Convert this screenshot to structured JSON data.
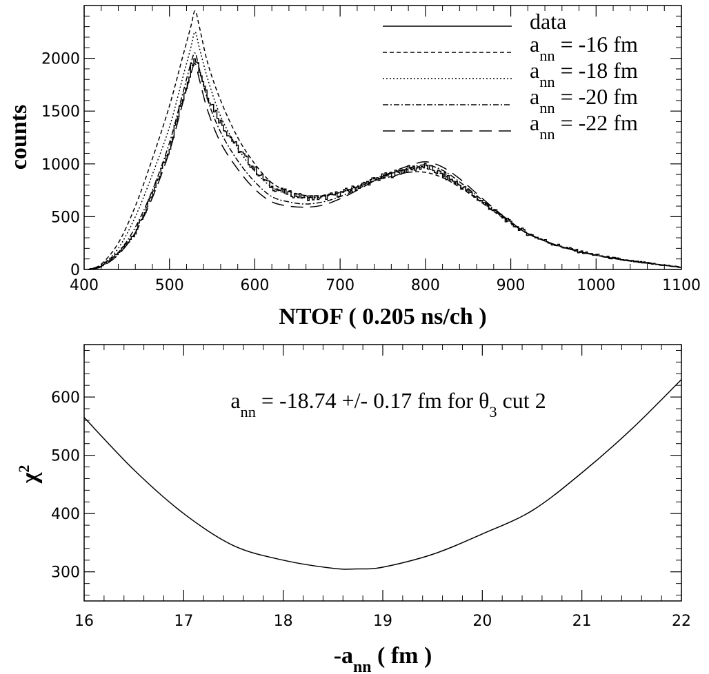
{
  "chart_data": [
    {
      "type": "line",
      "xlabel": "NTOF ( 0.205 ns/ch )",
      "ylabel": "counts",
      "xlim": [
        400,
        1100
      ],
      "ylim": [
        0,
        2500
      ],
      "x_ticks": [
        400,
        500,
        600,
        700,
        800,
        900,
        1000,
        1100
      ],
      "y_ticks": [
        0,
        500,
        1000,
        1500,
        2000
      ],
      "grid": false,
      "legend_position": "top-right",
      "series": [
        {
          "name": "data",
          "style": "histogram",
          "x": [
            405,
            420,
            440,
            460,
            480,
            500,
            515,
            525,
            530,
            535,
            545,
            560,
            580,
            600,
            620,
            640,
            660,
            680,
            700,
            720,
            740,
            760,
            780,
            800,
            820,
            840,
            860,
            880,
            900,
            920,
            950,
            980,
            1010,
            1040,
            1070,
            1100
          ],
          "y": [
            0,
            30,
            150,
            350,
            700,
            1150,
            1600,
            1900,
            2050,
            1900,
            1650,
            1400,
            1150,
            950,
            780,
            720,
            680,
            680,
            720,
            780,
            850,
            900,
            950,
            980,
            900,
            800,
            680,
            560,
            440,
            340,
            240,
            170,
            120,
            80,
            50,
            20
          ]
        },
        {
          "name": "a_nn = -16 fm",
          "dash": "6,4",
          "x": [
            405,
            420,
            440,
            460,
            480,
            500,
            515,
            525,
            530,
            535,
            545,
            560,
            580,
            600,
            620,
            640,
            660,
            680,
            700,
            720,
            740,
            760,
            780,
            800,
            820,
            840,
            860,
            880,
            900,
            920,
            950,
            980,
            1010,
            1040,
            1070,
            1100
          ],
          "y": [
            0,
            50,
            250,
            600,
            1050,
            1550,
            2000,
            2300,
            2450,
            2300,
            1950,
            1600,
            1250,
            1000,
            820,
            740,
            700,
            700,
            730,
            780,
            840,
            880,
            920,
            920,
            870,
            780,
            670,
            550,
            440,
            340,
            240,
            170,
            120,
            80,
            50,
            20
          ]
        },
        {
          "name": "a_nn = -18 fm",
          "dash": "2,3",
          "x": [
            405,
            420,
            440,
            460,
            480,
            500,
            515,
            525,
            530,
            535,
            545,
            560,
            580,
            600,
            620,
            640,
            660,
            680,
            700,
            720,
            740,
            760,
            780,
            800,
            820,
            840,
            860,
            880,
            900,
            920,
            950,
            980,
            1010,
            1040,
            1070,
            1100
          ],
          "y": [
            0,
            40,
            200,
            500,
            900,
            1350,
            1800,
            2100,
            2250,
            2100,
            1800,
            1450,
            1150,
            930,
            780,
            710,
            680,
            690,
            730,
            790,
            860,
            910,
            950,
            960,
            900,
            800,
            680,
            560,
            440,
            340,
            240,
            170,
            120,
            80,
            50,
            20
          ]
        },
        {
          "name": "a_nn = -20 fm",
          "dash": "8,3,2,3",
          "x": [
            405,
            420,
            440,
            460,
            480,
            500,
            515,
            525,
            530,
            535,
            545,
            560,
            580,
            600,
            620,
            640,
            660,
            680,
            700,
            720,
            740,
            760,
            780,
            800,
            820,
            840,
            860,
            880,
            900,
            920,
            950,
            980,
            1010,
            1040,
            1070,
            1100
          ],
          "y": [
            0,
            30,
            160,
            400,
            750,
            1200,
            1650,
            1950,
            2050,
            1900,
            1600,
            1300,
            1030,
            830,
            690,
            640,
            620,
            640,
            690,
            760,
            840,
            910,
            960,
            990,
            940,
            830,
            700,
            570,
            450,
            340,
            240,
            170,
            120,
            80,
            50,
            20
          ]
        },
        {
          "name": "a_nn = -22 fm",
          "dash": "18,10",
          "x": [
            405,
            420,
            440,
            460,
            480,
            500,
            515,
            525,
            530,
            535,
            545,
            560,
            580,
            600,
            620,
            640,
            660,
            680,
            700,
            720,
            740,
            760,
            780,
            800,
            820,
            840,
            860,
            880,
            900,
            920,
            950,
            980,
            1010,
            1040,
            1070,
            1100
          ],
          "y": [
            0,
            25,
            140,
            350,
            680,
            1120,
            1560,
            1850,
            1950,
            1800,
            1500,
            1200,
            950,
            760,
            640,
            600,
            590,
            610,
            670,
            750,
            840,
            920,
            980,
            1020,
            970,
            860,
            720,
            580,
            450,
            340,
            240,
            170,
            120,
            80,
            50,
            20
          ]
        }
      ]
    },
    {
      "type": "line",
      "xlabel": "-a_nn ( fm )",
      "ylabel": "χ²",
      "xlim": [
        16,
        22
      ],
      "ylim": [
        250,
        690
      ],
      "x_ticks": [
        16,
        17,
        18,
        19,
        20,
        21,
        22
      ],
      "y_ticks": [
        300,
        400,
        500,
        600
      ],
      "grid": false,
      "annotation": "a_nn = -18.74 +/- 0.17 fm for θ₃ cut 2",
      "series": [
        {
          "x": [
            16.0,
            16.5,
            17.0,
            17.5,
            18.0,
            18.5,
            18.74,
            19.0,
            19.5,
            20.0,
            20.5,
            21.0,
            21.5,
            22.0
          ],
          "y": [
            565,
            475,
            400,
            345,
            320,
            306,
            305,
            308,
            330,
            365,
            405,
            470,
            545,
            630
          ]
        }
      ]
    }
  ]
}
